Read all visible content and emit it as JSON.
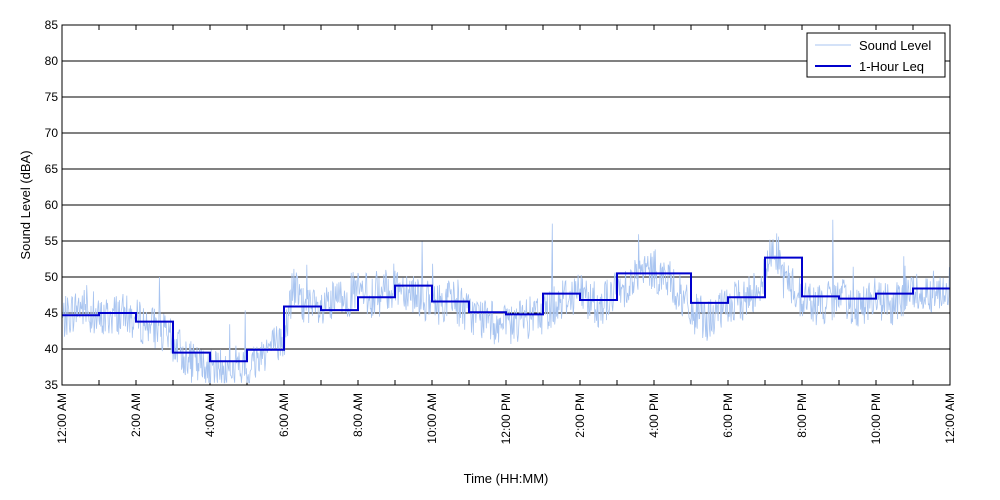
{
  "chart_data": {
    "type": "line",
    "title": "",
    "xlabel": "Time (HH:MM)",
    "ylabel": "Sound Level (dBA)",
    "ylim": [
      35,
      85
    ],
    "yticks": [
      35,
      40,
      45,
      50,
      55,
      60,
      65,
      70,
      75,
      80,
      85
    ],
    "xlim_hours": [
      0,
      24
    ],
    "xtick_hours": [
      0,
      2,
      4,
      6,
      8,
      10,
      12,
      14,
      16,
      18,
      20,
      22,
      24
    ],
    "xtick_labels": [
      "12:00 AM",
      "2:00 AM",
      "4:00 AM",
      "6:00 AM",
      "8:00 AM",
      "10:00 AM",
      "12:00 PM",
      "2:00 PM",
      "4:00 PM",
      "6:00 PM",
      "8:00 PM",
      "10:00 PM",
      "12:00 AM"
    ],
    "grid": "horizontal",
    "legend_position": "top-right",
    "series": [
      {
        "name": "Sound Level",
        "style": "thin-line",
        "color": "#a8c4f0",
        "x_hours": [
          0,
          0.5,
          1,
          1.5,
          2,
          2.5,
          3,
          3.5,
          4,
          4.5,
          5,
          5.5,
          6,
          6.25,
          6.5,
          7,
          7.5,
          8,
          8.5,
          9,
          9.5,
          10,
          10.5,
          11,
          11.5,
          12,
          12.5,
          13,
          13.5,
          14,
          14.5,
          15,
          15.5,
          16,
          16.5,
          17,
          17.5,
          18,
          18.5,
          19,
          19.25,
          19.5,
          20,
          20.5,
          21,
          21.5,
          22,
          22.5,
          23,
          23.5,
          24
        ],
        "values": [
          44,
          46,
          44,
          45,
          44,
          43,
          41,
          38,
          37,
          37,
          37,
          40,
          41,
          49,
          46,
          45,
          47,
          48,
          47,
          49,
          48,
          46,
          47,
          45,
          44,
          43,
          44,
          45,
          47,
          48,
          46,
          48,
          50,
          51,
          49,
          45,
          44,
          46,
          47,
          50,
          55,
          50,
          47,
          46,
          47,
          46,
          47,
          46,
          48,
          48,
          49
        ]
      },
      {
        "name": "1-Hour Leq",
        "style": "step",
        "color": "#0000cc",
        "hour_start": [
          0,
          1,
          2,
          3,
          4,
          5,
          6,
          7,
          8,
          9,
          10,
          11,
          12,
          13,
          14,
          15,
          16,
          17,
          18,
          19,
          20,
          21,
          22,
          23
        ],
        "values": [
          44.7,
          45.0,
          43.8,
          39.5,
          38.3,
          39.9,
          45.9,
          45.4,
          47.2,
          48.8,
          46.6,
          45.1,
          44.8,
          47.7,
          46.8,
          50.5,
          50.5,
          46.4,
          47.2,
          52.7,
          47.3,
          47.0,
          47.7,
          48.4
        ]
      }
    ]
  }
}
